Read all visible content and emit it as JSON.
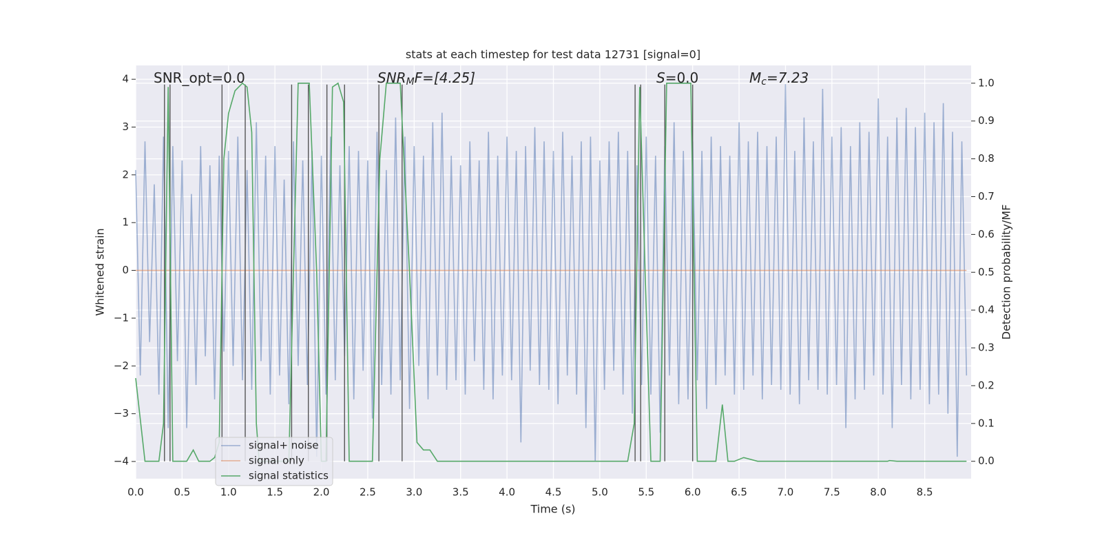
{
  "chart_data": {
    "type": "line",
    "title": "stats at each timestep for test data 12731 [signal=0]",
    "xlabel": "Time (s)",
    "ylabel": "Whitened strain",
    "y2label": "Detection probability/MF",
    "annotations": [
      {
        "main": "SNR_opt=0.0"
      },
      {
        "main": "SNR",
        "sub": "M",
        "rest": "F=[4.25]",
        "italic": true
      },
      {
        "main": "S",
        "rest": "=0.0",
        "italic": true
      },
      {
        "main": "M",
        "sub": "c",
        "rest": "=7.23",
        "italic": true
      }
    ],
    "xlim": [
      0,
      9.0
    ],
    "ylim": [
      -4.36,
      4.29
    ],
    "y2lim": [
      -0.046,
      1.047
    ],
    "xticks": [
      {
        "value": 0,
        "label": "0.0"
      },
      {
        "value": 0.5,
        "label": "0.5"
      },
      {
        "value": 1,
        "label": "1.0"
      },
      {
        "value": 1.5,
        "label": "1.5"
      },
      {
        "value": 2,
        "label": "2.0"
      },
      {
        "value": 2.5,
        "label": "2.5"
      },
      {
        "value": 3,
        "label": "3.0"
      },
      {
        "value": 3.5,
        "label": "3.5"
      },
      {
        "value": 4,
        "label": "4.0"
      },
      {
        "value": 4.5,
        "label": "4.5"
      },
      {
        "value": 5,
        "label": "5.0"
      },
      {
        "value": 5.5,
        "label": "5.5"
      },
      {
        "value": 6,
        "label": "6.0"
      },
      {
        "value": 6.5,
        "label": "6.5"
      },
      {
        "value": 7,
        "label": "7.0"
      },
      {
        "value": 7.5,
        "label": "7.5"
      },
      {
        "value": 8,
        "label": "8.0"
      },
      {
        "value": 8.5,
        "label": "8.5"
      }
    ],
    "yticks": [
      {
        "value": -4,
        "label": "−4"
      },
      {
        "value": -3,
        "label": "−3"
      },
      {
        "value": -2,
        "label": "−2"
      },
      {
        "value": -1,
        "label": "−1"
      },
      0,
      1,
      2,
      3,
      4
    ],
    "y2ticks": [
      {
        "value": 0,
        "label": "0.0"
      },
      {
        "value": 0.1,
        "label": "0.1"
      },
      {
        "value": 0.2,
        "label": "0.2"
      },
      {
        "value": 0.3,
        "label": "0.3"
      },
      {
        "value": 0.4,
        "label": "0.4"
      },
      {
        "value": 0.5,
        "label": "0.5"
      },
      {
        "value": 0.6,
        "label": "0.6"
      },
      {
        "value": 0.7,
        "label": "0.7"
      },
      {
        "value": 0.8,
        "label": "0.8"
      },
      {
        "value": 0.9,
        "label": "0.9"
      },
      {
        "value": 1,
        "label": "1.0"
      }
    ],
    "grid": true,
    "legend": "lower left",
    "vline_color": "#555555",
    "vlines": [
      0.31,
      0.37,
      0.93,
      1.18,
      1.68,
      1.86,
      2.06,
      2.25,
      2.62,
      2.87,
      5.38,
      5.44,
      5.7,
      6.0
    ],
    "series": [
      {
        "name": "signal+ noise",
        "color": "#4c72b0",
        "opacity": 0.5,
        "x": [
          0,
          0.05,
          0.1,
          0.15,
          0.2,
          0.25,
          0.3,
          0.35,
          0.4,
          0.45,
          0.5,
          0.55,
          0.6,
          0.65,
          0.7,
          0.75,
          0.8,
          0.85,
          0.9,
          0.95,
          1,
          1.05,
          1.1,
          1.15,
          1.2,
          1.25,
          1.3,
          1.35,
          1.4,
          1.45,
          1.5,
          1.55,
          1.6,
          1.65,
          1.7,
          1.75,
          1.8,
          1.85,
          1.9,
          1.95,
          2,
          2.05,
          2.1,
          2.15,
          2.2,
          2.25,
          2.3,
          2.35,
          2.4,
          2.45,
          2.5,
          2.55,
          2.6,
          2.65,
          2.7,
          2.75,
          2.8,
          2.85,
          2.9,
          2.95,
          3,
          3.05,
          3.1,
          3.15,
          3.2,
          3.25,
          3.3,
          3.35,
          3.4,
          3.45,
          3.5,
          3.55,
          3.6,
          3.65,
          3.7,
          3.75,
          3.8,
          3.85,
          3.9,
          3.95,
          4,
          4.05,
          4.1,
          4.15,
          4.2,
          4.25,
          4.3,
          4.35,
          4.4,
          4.45,
          4.5,
          4.55,
          4.6,
          4.65,
          4.7,
          4.75,
          4.8,
          4.85,
          4.9,
          4.95,
          5,
          5.05,
          5.1,
          5.15,
          5.2,
          5.25,
          5.3,
          5.35,
          5.4,
          5.45,
          5.5,
          5.55,
          5.6,
          5.65,
          5.7,
          5.75,
          5.8,
          5.85,
          5.9,
          5.95,
          6,
          6.05,
          6.1,
          6.15,
          6.2,
          6.25,
          6.3,
          6.35,
          6.4,
          6.45,
          6.5,
          6.55,
          6.6,
          6.65,
          6.7,
          6.75,
          6.8,
          6.85,
          6.9,
          6.95,
          7,
          7.05,
          7.1,
          7.15,
          7.2,
          7.25,
          7.3,
          7.35,
          7.4,
          7.45,
          7.5,
          7.55,
          7.6,
          7.65,
          7.7,
          7.75,
          7.8,
          7.85,
          7.9,
          7.95,
          8,
          8.05,
          8.1,
          8.15,
          8.2,
          8.25,
          8.3,
          8.35,
          8.4,
          8.45,
          8.5,
          8.55,
          8.6,
          8.65,
          8.7,
          8.75,
          8.8,
          8.85,
          8.9,
          8.95
        ],
        "values": [
          2.1,
          -2.2,
          2.7,
          -1.5,
          1.8,
          -2.6,
          2.8,
          -3.3,
          2.6,
          -1.9,
          2.3,
          -3.3,
          1.6,
          -2.4,
          2.6,
          -1.8,
          2.2,
          -2.7,
          2.4,
          -1.7,
          2.5,
          -2.0,
          2.8,
          -2.3,
          2.1,
          -2.5,
          3.1,
          -1.9,
          2.4,
          -2.6,
          2.6,
          -2.2,
          1.9,
          -2.8,
          2.7,
          -2.0,
          2.3,
          -2.4,
          2.5,
          -3.9,
          2.4,
          -2.6,
          2.8,
          -2.3,
          2.2,
          -1.8,
          2.6,
          -2.7,
          2.5,
          -2.1,
          2.3,
          -3.1,
          2.9,
          -2.4,
          2.1,
          -2.6,
          3.2,
          -2.3,
          2.8,
          -2.9,
          2.6,
          -2.0,
          2.4,
          -2.7,
          3.1,
          -2.2,
          3.3,
          -2.5,
          2.4,
          -2.3,
          2.2,
          -2.6,
          2.7,
          -1.9,
          2.3,
          -2.5,
          2.9,
          -2.7,
          2.4,
          -2.2,
          2.8,
          -2.3,
          2.5,
          -3.6,
          2.6,
          -2.1,
          3.0,
          -2.4,
          2.7,
          -2.5,
          2.5,
          -2.8,
          2.9,
          -2.2,
          2.4,
          -2.6,
          2.7,
          -3.3,
          2.8,
          -4.0,
          2.3,
          -2.5,
          2.7,
          -2.1,
          2.9,
          -2.6,
          2.5,
          -3.0,
          2.2,
          -2.4,
          2.8,
          -2.6,
          2.4,
          -3.4,
          2.6,
          -2.2,
          3.1,
          -2.8,
          2.5,
          -2.7,
          2.7,
          -2.3,
          2.5,
          -2.9,
          2.8,
          -2.4,
          2.6,
          -2.2,
          2.4,
          -2.6,
          3.1,
          -2.5,
          2.7,
          -2.2,
          2.9,
          -2.7,
          2.6,
          -2.4,
          2.8,
          -2.5,
          3.9,
          -2.6,
          2.5,
          -2.8,
          3.2,
          -2.3,
          2.7,
          -2.5,
          3.8,
          -2.6,
          2.8,
          -2.4,
          3.0,
          -3.3,
          2.6,
          -2.7,
          3.1,
          -2.5,
          2.9,
          -2.2,
          3.6,
          -2.6,
          2.8,
          -3.3,
          3.2,
          -2.4,
          3.4,
          -2.7,
          3.0,
          -2.5,
          3.3,
          -2.8,
          3.1,
          -2.6,
          3.5,
          -3.0,
          2.9,
          -3.9,
          2.7,
          -2.2
        ]
      },
      {
        "name": "signal only",
        "color": "#dd8452",
        "opacity": 0.6,
        "x": [
          0,
          8.95
        ],
        "values": [
          0,
          0
        ]
      },
      {
        "name": "signal statistics",
        "color": "#55a868",
        "opacity": 1,
        "axis": "y2",
        "x": [
          0,
          0.1,
          0.25,
          0.3,
          0.35,
          0.4,
          0.55,
          0.62,
          0.68,
          0.8,
          0.85,
          0.9,
          0.95,
          1.0,
          1.07,
          1.15,
          1.2,
          1.25,
          1.3,
          1.33,
          1.65,
          1.7,
          1.75,
          1.87,
          1.95,
          2.0,
          2.05,
          2.12,
          2.18,
          2.24,
          2.3,
          2.55,
          2.63,
          2.7,
          2.85,
          2.95,
          3.03,
          3.1,
          3.17,
          3.25,
          5.3,
          5.37,
          5.43,
          5.5,
          5.55,
          5.65,
          5.72,
          5.98,
          6.05,
          6.15,
          6.25,
          6.32,
          6.38,
          6.45,
          6.55,
          6.7,
          8.1,
          8.12,
          8.2,
          8.95
        ],
        "values": [
          0.22,
          0.0,
          0.0,
          0.1,
          0.99,
          0.0,
          0.0,
          0.03,
          0.0,
          0.0,
          0.01,
          0.05,
          0.8,
          0.92,
          0.98,
          1.0,
          0.99,
          0.87,
          0.1,
          0.0,
          0.0,
          0.5,
          1.0,
          1.0,
          0.5,
          0.0,
          0.0,
          0.99,
          1.0,
          0.95,
          0.0,
          0.0,
          0.8,
          1.0,
          1.0,
          0.5,
          0.05,
          0.03,
          0.03,
          0.0,
          0.0,
          0.1,
          0.99,
          0.4,
          0.0,
          0.0,
          1.0,
          1.0,
          0.0,
          0.0,
          0.0,
          0.15,
          0.0,
          0.0,
          0.01,
          0.0,
          0.0,
          0.002,
          0.0,
          0.0
        ]
      }
    ]
  }
}
